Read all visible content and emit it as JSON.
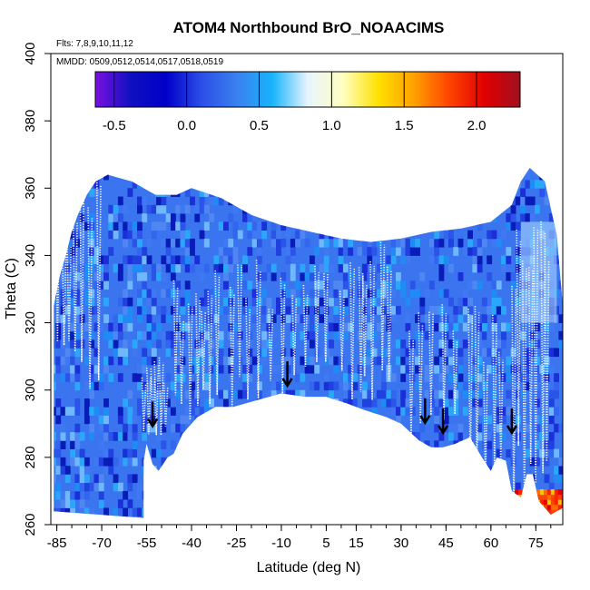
{
  "chart_data": {
    "type": "heatmap",
    "title": "ATOM4 Northbound BrO_NOAACIMS",
    "notes": [
      "Flts: 7,8,9,10,11,12",
      "MMDD: 0509,0512,0514,0517,0518,0519"
    ],
    "xlabel": "Latitude (deg N)",
    "ylabel": "Theta (C)",
    "xlim": [
      -87,
      84
    ],
    "ylim": [
      260,
      400
    ],
    "xticks": [
      "-85",
      "-70",
      "-55",
      "-40",
      "-25",
      "-10",
      "5",
      "15",
      "30",
      "45",
      "60",
      "75"
    ],
    "yticks": [
      "260",
      "280",
      "300",
      "320",
      "340",
      "360",
      "380",
      "400"
    ],
    "colorbar": {
      "min": -0.63,
      "max": 2.3,
      "tick_values": [
        -0.5,
        0,
        0.5,
        1,
        1.5,
        2
      ],
      "tick_labels": [
        "-0.5",
        "0.0",
        "0.5",
        "1.0",
        "1.5",
        "2.0"
      ],
      "colors": [
        "#7a10e0",
        "#1010c0",
        "#0000c8",
        "#2c4ee8",
        "#3a80f0",
        "#17b4fb",
        "#e8f4ff",
        "#ffffc0",
        "#ffe000",
        "#ffa000",
        "#ff4400",
        "#e00000",
        "#a01020"
      ]
    },
    "field_outline_theta_vs_lat": [
      [
        -86,
        264
      ],
      [
        -86,
        325
      ],
      [
        -84,
        334
      ],
      [
        -82,
        340
      ],
      [
        -80,
        347
      ],
      [
        -78,
        352
      ],
      [
        -75,
        358
      ],
      [
        -72,
        362
      ],
      [
        -68,
        364
      ],
      [
        -60,
        362
      ],
      [
        -52,
        358
      ],
      [
        -45,
        358
      ],
      [
        -40,
        360
      ],
      [
        -30,
        357
      ],
      [
        -20,
        352
      ],
      [
        -10,
        349
      ],
      [
        0,
        347
      ],
      [
        10,
        345
      ],
      [
        20,
        344
      ],
      [
        30,
        345
      ],
      [
        40,
        347
      ],
      [
        50,
        348
      ],
      [
        60,
        350
      ],
      [
        67,
        355
      ],
      [
        70,
        362
      ],
      [
        73,
        366
      ],
      [
        78,
        362
      ],
      [
        82,
        346
      ],
      [
        84,
        325
      ],
      [
        84,
        265
      ],
      [
        80,
        263
      ],
      [
        76,
        267
      ],
      [
        74,
        275
      ],
      [
        72,
        275
      ],
      [
        70,
        268
      ],
      [
        67,
        270
      ],
      [
        65,
        279
      ],
      [
        62,
        280
      ],
      [
        60,
        276
      ],
      [
        57,
        280
      ],
      [
        53,
        286
      ],
      [
        48,
        284
      ],
      [
        44,
        283
      ],
      [
        40,
        283
      ],
      [
        36,
        285
      ],
      [
        30,
        290
      ],
      [
        25,
        292
      ],
      [
        18,
        294
      ],
      [
        12,
        296
      ],
      [
        5,
        298
      ],
      [
        -2,
        298
      ],
      [
        -10,
        299
      ],
      [
        -18,
        297
      ],
      [
        -26,
        295
      ],
      [
        -32,
        295
      ],
      [
        -38,
        292
      ],
      [
        -43,
        287
      ],
      [
        -46,
        281
      ],
      [
        -48,
        280
      ],
      [
        -51,
        276
      ],
      [
        -53,
        278
      ],
      [
        -55,
        284
      ],
      [
        -56,
        279
      ],
      [
        -56,
        262
      ]
    ],
    "hot_patch": {
      "lat": [
        68,
        84
      ],
      "theta": [
        263,
        270
      ],
      "value": 2.2
    },
    "arrows_lat_theta": [
      [
        -53,
        289
      ],
      [
        -8,
        301
      ],
      [
        38,
        290
      ],
      [
        44,
        287
      ],
      [
        67,
        287
      ]
    ],
    "flight_track_profiles": [
      {
        "lat_range": [
          -86,
          -70
        ],
        "theta_range": [
          300,
          364
        ]
      },
      {
        "lat_range": [
          -56,
          -48
        ],
        "theta_range": [
          285,
          310
        ]
      },
      {
        "lat_range": [
          -46,
          -30
        ],
        "theta_range": [
          290,
          336
        ]
      },
      {
        "lat_range": [
          -28,
          -12
        ],
        "theta_range": [
          293,
          340
        ]
      },
      {
        "lat_range": [
          -10,
          8
        ],
        "theta_range": [
          298,
          344
        ]
      },
      {
        "lat_range": [
          10,
          28
        ],
        "theta_range": [
          295,
          346
        ]
      },
      {
        "lat_range": [
          32,
          50
        ],
        "theta_range": [
          285,
          330
        ]
      },
      {
        "lat_range": [
          52,
          66
        ],
        "theta_range": [
          270,
          325
        ]
      },
      {
        "lat_range": [
          67,
          80
        ],
        "theta_range": [
          262,
          356
        ]
      }
    ]
  }
}
